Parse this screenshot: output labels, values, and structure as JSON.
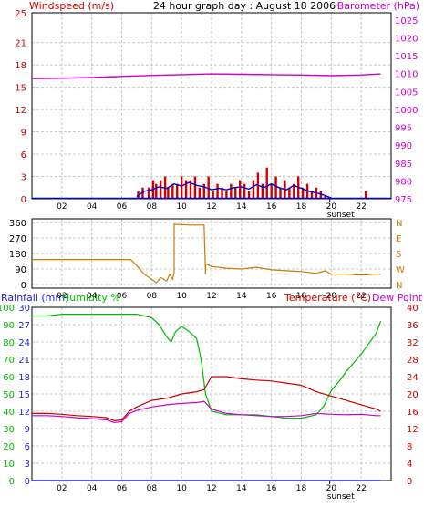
{
  "header": {
    "left_label": "Windspeed (m/s)",
    "title": "24 hour graph day : August 18 2006",
    "right_label": "Barometer (hPa)"
  },
  "colors": {
    "wind": "#cc0000",
    "wind_avg": "#0000cc",
    "barometer": "#cc00cc",
    "direction": "#cc7a00",
    "humidity": "#00bb00",
    "temperature": "#cc0000",
    "dewpoint": "#cc00cc",
    "rainfall": "#2222cc",
    "grid": "#c8c8c8"
  },
  "x_ticks": [
    "02",
    "04",
    "06",
    "08",
    "10",
    "12",
    "14",
    "16",
    "18",
    "20",
    "22"
  ],
  "sunset_label": "sunset",
  "chart_data": [
    {
      "type": "line",
      "panel": "wind-barometer",
      "left_axis": {
        "ticks": [
          0,
          3,
          6,
          9,
          12,
          15,
          18,
          21,
          25
        ],
        "ylim": [
          0,
          25
        ]
      },
      "right_axis": {
        "ticks": [
          975,
          980,
          985,
          990,
          995,
          1000,
          1005,
          1010,
          1015,
          1020,
          1025
        ],
        "ylim": [
          975,
          1027
        ]
      },
      "series": [
        {
          "name": "Windspeed",
          "axis": "left",
          "style": "bars",
          "x": [
            7.1,
            7.4,
            7.8,
            8.1,
            8.3,
            8.6,
            8.9,
            9.1,
            9.4,
            9.7,
            10.0,
            10.3,
            10.6,
            10.9,
            11.2,
            11.5,
            11.8,
            12.1,
            12.4,
            12.7,
            13.0,
            13.3,
            13.6,
            13.9,
            14.2,
            14.5,
            14.8,
            15.1,
            15.4,
            15.7,
            16.0,
            16.3,
            16.6,
            16.9,
            17.2,
            17.5,
            17.8,
            18.1,
            18.4,
            18.7,
            19.0,
            19.3,
            19.6,
            22.3
          ],
          "y": [
            1,
            1.5,
            1.5,
            2.5,
            2,
            2.5,
            3,
            1.5,
            2,
            2,
            3,
            2.5,
            2.5,
            3,
            1.5,
            2,
            3,
            1,
            2,
            1.5,
            1,
            2,
            1.5,
            2.5,
            2,
            1,
            2.5,
            3.5,
            2,
            4.2,
            2,
            3,
            1.5,
            2.5,
            1.5,
            2,
            3,
            1.5,
            2,
            1,
            1.5,
            1,
            0.5,
            1
          ]
        },
        {
          "name": "Average windspeed",
          "axis": "left",
          "style": "line",
          "x": [
            7.0,
            7.5,
            8.0,
            8.5,
            9.0,
            9.5,
            10.0,
            10.5,
            11.0,
            11.5,
            12.0,
            12.5,
            13.0,
            13.5,
            14.0,
            14.5,
            15.0,
            15.5,
            16.0,
            16.5,
            17.0,
            17.5,
            18.0,
            18.5,
            19.0,
            19.5,
            20.0
          ],
          "y": [
            0.3,
            1.0,
            1.2,
            1.6,
            1.4,
            2.0,
            1.7,
            2.2,
            1.8,
            1.6,
            1.2,
            1.4,
            1.2,
            1.5,
            1.6,
            1.3,
            1.9,
            1.5,
            2.0,
            1.5,
            1.2,
            1.8,
            1.4,
            1.0,
            0.8,
            0.5,
            0.1
          ]
        },
        {
          "name": "Barometer",
          "axis": "right",
          "style": "line",
          "x": [
            0,
            2,
            4,
            6,
            8,
            10,
            12,
            14,
            16,
            18,
            20,
            22,
            23.3
          ],
          "y": [
            1008.6,
            1008.7,
            1008.9,
            1009.2,
            1009.5,
            1009.7,
            1009.9,
            1009.8,
            1009.7,
            1009.6,
            1009.4,
            1009.6,
            1009.9
          ]
        }
      ]
    },
    {
      "type": "line",
      "panel": "wind-direction",
      "left_axis": {
        "ticks": [
          0,
          90,
          180,
          270,
          360
        ],
        "ylim": [
          0,
          360
        ]
      },
      "right_axis": {
        "labels": [
          "N",
          "E",
          "S",
          "W",
          "N"
        ]
      },
      "series": [
        {
          "name": "Wind direction",
          "axis": "left",
          "x": [
            0,
            6.6,
            7.0,
            7.5,
            8.0,
            8.3,
            8.6,
            9.0,
            9.2,
            9.4,
            9.5,
            9.5,
            10.5,
            11.5,
            11.6,
            11.6,
            12.0,
            13.0,
            14.0,
            15.0,
            16.0,
            17.0,
            18.0,
            19.0,
            19.6,
            20.0,
            21.0,
            22.0,
            23.0,
            23.3
          ],
          "y": [
            145,
            145,
            110,
            60,
            30,
            10,
            40,
            20,
            60,
            30,
            70,
            350,
            345,
            345,
            60,
            120,
            105,
            95,
            90,
            100,
            85,
            80,
            75,
            65,
            80,
            60,
            60,
            55,
            60,
            60
          ]
        }
      ]
    },
    {
      "type": "line",
      "panel": "temperature-humidity",
      "left_axis_humidity": {
        "ticks": [
          0,
          10,
          20,
          30,
          40,
          50,
          60,
          70,
          80,
          90,
          100
        ],
        "ylim": [
          0,
          100
        ]
      },
      "left_axis_rainfall": {
        "ticks": [
          0,
          3,
          6,
          9,
          12,
          15,
          18,
          21,
          24,
          27,
          30
        ],
        "ylim": [
          0,
          30
        ]
      },
      "right_axis_temperature": {
        "ticks": [
          0,
          4,
          8,
          12,
          16,
          20,
          24,
          28,
          32,
          36,
          40
        ],
        "ylim": [
          0,
          40
        ]
      },
      "labels": {
        "rainfall": "Rainfall (mm)",
        "humidity": "Humidity %",
        "temperature": "Temperature (°C)",
        "dewpoint": "Dew Point"
      },
      "series": [
        {
          "name": "Humidity",
          "axis": "humidity",
          "x": [
            0,
            1,
            2,
            3,
            4,
            5,
            6,
            7,
            8,
            8.5,
            9.0,
            9.3,
            9.6,
            10.0,
            10.5,
            11.0,
            11.3,
            11.6,
            11.8,
            12.0,
            13.0,
            14.0,
            15.0,
            16.0,
            17.0,
            18.0,
            19.0,
            19.5,
            20.0,
            20.5,
            21.0,
            22.0,
            23.0,
            23.3
          ],
          "y": [
            95,
            95,
            96,
            96,
            96,
            96,
            96,
            96,
            94,
            90,
            83,
            80,
            86,
            89,
            86,
            82,
            70,
            50,
            45,
            40,
            38,
            38,
            38,
            37,
            36,
            36,
            38,
            43,
            52,
            57,
            63,
            73,
            85,
            92
          ]
        },
        {
          "name": "Temperature",
          "axis": "temperature",
          "x": [
            0,
            1,
            2,
            3,
            4,
            5,
            5.5,
            6.0,
            6.5,
            7.0,
            8.0,
            9.0,
            10.0,
            11.0,
            11.5,
            12.0,
            13.0,
            14.0,
            15.0,
            16.0,
            17.0,
            18.0,
            19.0,
            20.0,
            21.0,
            22.0,
            23.0,
            23.3
          ],
          "y": [
            15.5,
            15.5,
            15.3,
            15.0,
            14.8,
            14.5,
            13.8,
            14.0,
            16.0,
            17.0,
            18.5,
            19.0,
            20.0,
            20.5,
            21.0,
            24.0,
            24.0,
            23.5,
            23.2,
            23.0,
            22.5,
            22.0,
            20.5,
            19.5,
            18.5,
            17.5,
            16.5,
            16.0
          ]
        },
        {
          "name": "Dew Point",
          "axis": "temperature",
          "x": [
            0,
            1,
            2,
            3,
            4,
            5,
            5.5,
            6.0,
            6.5,
            7.0,
            8.0,
            9.0,
            10.0,
            11.0,
            11.5,
            12.0,
            13.0,
            14.0,
            15.0,
            16.0,
            17.0,
            18.0,
            19.0,
            20.0,
            21.0,
            22.0,
            23.0,
            23.3
          ],
          "y": [
            15.0,
            15.0,
            14.8,
            14.5,
            14.3,
            14.0,
            13.4,
            13.6,
            15.5,
            16.2,
            17.0,
            17.5,
            17.8,
            18.0,
            18.3,
            16.5,
            15.5,
            15.2,
            15.0,
            14.8,
            14.8,
            15.0,
            15.5,
            15.3,
            15.2,
            15.3,
            15.0,
            15.0
          ]
        },
        {
          "name": "Rainfall",
          "axis": "rainfall",
          "x": [
            0,
            23.3
          ],
          "y": [
            0,
            0
          ]
        }
      ]
    }
  ]
}
